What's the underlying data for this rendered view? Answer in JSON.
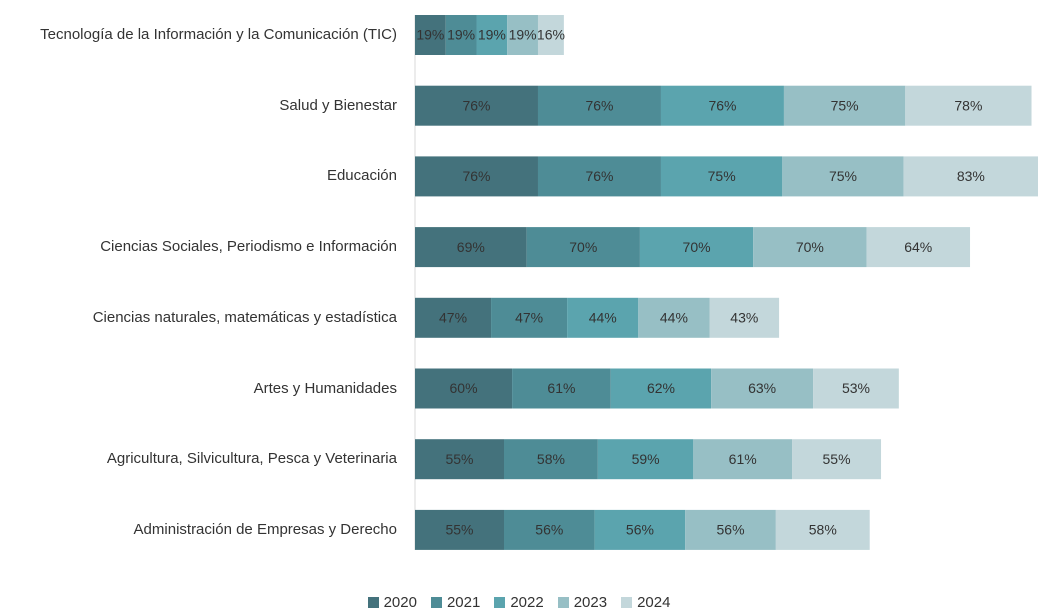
{
  "chart_data": {
    "type": "stacked_barh",
    "categories": [
      "Tecnología de la Información y la Comunicación (TIC)",
      "Salud y Bienestar",
      "Educación",
      "Ciencias Sociales, Periodismo e Información",
      "Ciencias naturales, matemáticas y estadística",
      "Artes y Humanidades",
      "Agricultura, Silvicultura, Pesca y Veterinaria",
      "Administración de Empresas y Derecho"
    ],
    "series": [
      {
        "name": "2020",
        "color": "#44727c",
        "values": [
          19,
          76,
          76,
          69,
          47,
          60,
          55,
          55
        ],
        "value_labels": [
          "19%",
          "76%",
          "76%",
          "69%",
          "47%",
          "60%",
          "55%",
          "55%"
        ]
      },
      {
        "name": "2021",
        "color": "#4e8c96",
        "values": [
          19,
          76,
          76,
          70,
          47,
          61,
          58,
          56
        ],
        "value_labels": [
          "19%",
          "76%",
          "76%",
          "70%",
          "47%",
          "61%",
          "58%",
          "56%"
        ]
      },
      {
        "name": "2022",
        "color": "#5ba4ae",
        "values": [
          19,
          76,
          75,
          70,
          44,
          62,
          59,
          56
        ],
        "value_labels": [
          "19%",
          "76%",
          "75%",
          "70%",
          "44%",
          "62%",
          "59%",
          "56%"
        ]
      },
      {
        "name": "2023",
        "color": "#97bfc5",
        "values": [
          19,
          75,
          75,
          70,
          44,
          63,
          61,
          56
        ],
        "value_labels": [
          "19%",
          "75%",
          "75%",
          "70%",
          "44%",
          "63%",
          "61%",
          "56%"
        ]
      },
      {
        "name": "2024",
        "color": "#c3d7db",
        "values": [
          16,
          78,
          83,
          64,
          43,
          53,
          55,
          58
        ],
        "value_labels": [
          "16%",
          "78%",
          "83%",
          "64%",
          "43%",
          "53%",
          "55%",
          "58%"
        ]
      }
    ],
    "legend": "bottom"
  }
}
